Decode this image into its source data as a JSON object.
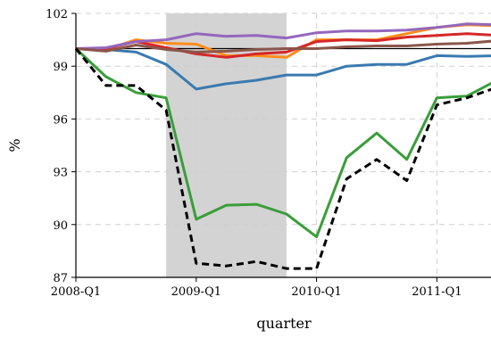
{
  "chart_data": {
    "type": "line",
    "title": "",
    "xlabel": "quarter",
    "ylabel": "%",
    "ylim": [
      87,
      102
    ],
    "yticks": [
      87,
      90,
      93,
      96,
      99,
      102
    ],
    "x": [
      "2008-Q1",
      "2008-Q2",
      "2008-Q3",
      "2008-Q4",
      "2009-Q1",
      "2009-Q2",
      "2009-Q3",
      "2009-Q4",
      "2010-Q1",
      "2010-Q2",
      "2010-Q3",
      "2010-Q4",
      "2011-Q1",
      "2011-Q2",
      "2011-Q3"
    ],
    "xticks": [
      "2008-Q1",
      "2009-Q1",
      "2010-Q1",
      "2011-Q1"
    ],
    "shaded_region": {
      "from": "2008-Q4",
      "to": "2009-Q4"
    },
    "grid": true,
    "reference_line": 100,
    "series": [
      {
        "color": "#3a7ab0",
        "style": "solid",
        "values": [
          100.0,
          99.95,
          99.8,
          99.1,
          97.7,
          98.0,
          98.2,
          98.5,
          98.5,
          99.0,
          99.1,
          99.1,
          99.6,
          99.55,
          99.6
        ]
      },
      {
        "color": "#ff8c1a",
        "style": "solid",
        "values": [
          100.0,
          99.95,
          100.5,
          100.3,
          100.25,
          99.6,
          99.6,
          99.5,
          100.5,
          100.5,
          100.5,
          100.85,
          101.2,
          101.35,
          101.3
        ]
      },
      {
        "color": "#3a9e3a",
        "style": "solid",
        "values": [
          100.0,
          98.4,
          97.5,
          97.2,
          90.3,
          91.1,
          91.15,
          90.6,
          89.3,
          93.8,
          95.2,
          93.7,
          97.2,
          97.3,
          98.2
        ]
      },
      {
        "color": "#d62728",
        "style": "solid",
        "values": [
          100.0,
          100.0,
          100.4,
          100.05,
          99.7,
          99.5,
          99.7,
          99.8,
          100.4,
          100.5,
          100.45,
          100.65,
          100.75,
          100.85,
          100.75
        ]
      },
      {
        "color": "#9467bd",
        "style": "solid",
        "values": [
          100.0,
          100.05,
          100.4,
          100.5,
          100.85,
          100.7,
          100.75,
          100.6,
          100.9,
          101.0,
          101.0,
          101.05,
          101.2,
          101.4,
          101.35
        ]
      },
      {
        "color": "#8c564b",
        "style": "solid",
        "values": [
          100.0,
          99.85,
          100.2,
          99.95,
          99.8,
          99.85,
          99.95,
          100.0,
          100.0,
          100.1,
          100.15,
          100.15,
          100.25,
          100.3,
          100.45
        ]
      },
      {
        "color": "#000000",
        "style": "dashed",
        "values": [
          100.0,
          97.9,
          97.9,
          96.5,
          87.8,
          87.65,
          87.9,
          87.5,
          87.5,
          92.6,
          93.7,
          92.5,
          96.8,
          97.2,
          97.8
        ]
      }
    ]
  }
}
